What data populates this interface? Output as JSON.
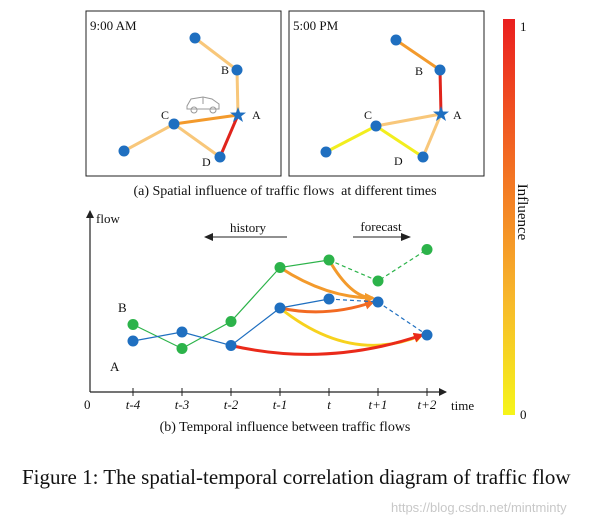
{
  "panels": {
    "am": {
      "time": "9:00 AM"
    },
    "pm": {
      "time": "5:00 PM"
    }
  },
  "nodes": {
    "a": "A",
    "b": "B",
    "c": "C",
    "d": "D"
  },
  "subcaption_a": "(a) Spatial influence of traffic flows  at different times",
  "temporal": {
    "y_axis": "flow",
    "x_axis": "time",
    "origin": "0",
    "history": "history",
    "forecast": "forecast",
    "series_b": "B",
    "series_a": "A",
    "ticks": [
      "t-4",
      "t-3",
      "t-2",
      "t-1",
      "t",
      "t+1",
      "t+2"
    ],
    "series": [
      {
        "name": "B",
        "color": "#2cb34a",
        "values": [
          0.45,
          0.29,
          0.47,
          0.83,
          0.88,
          0.74,
          0.95
        ]
      },
      {
        "name": "A",
        "color": "#1f6fc0",
        "values": [
          0.34,
          0.4,
          0.31,
          0.56,
          0.62,
          0.6,
          0.38
        ]
      }
    ]
  },
  "subcaption_b": "(b) Temporal influence between traffic flows",
  "colorbar": {
    "max": "1",
    "min": "0",
    "label": "Influence"
  },
  "caption": "Figure 1: The spatial-temporal correlation diagram of traffic flow",
  "watermark": "https://blog.csdn.net/mintminty",
  "colors": {
    "node": "#1f6fc0",
    "green": "#2cb34a",
    "red": "#e0241c",
    "orange": "#f39a2c",
    "light": "#f8c77a",
    "yellow": "#f2ee1e"
  }
}
